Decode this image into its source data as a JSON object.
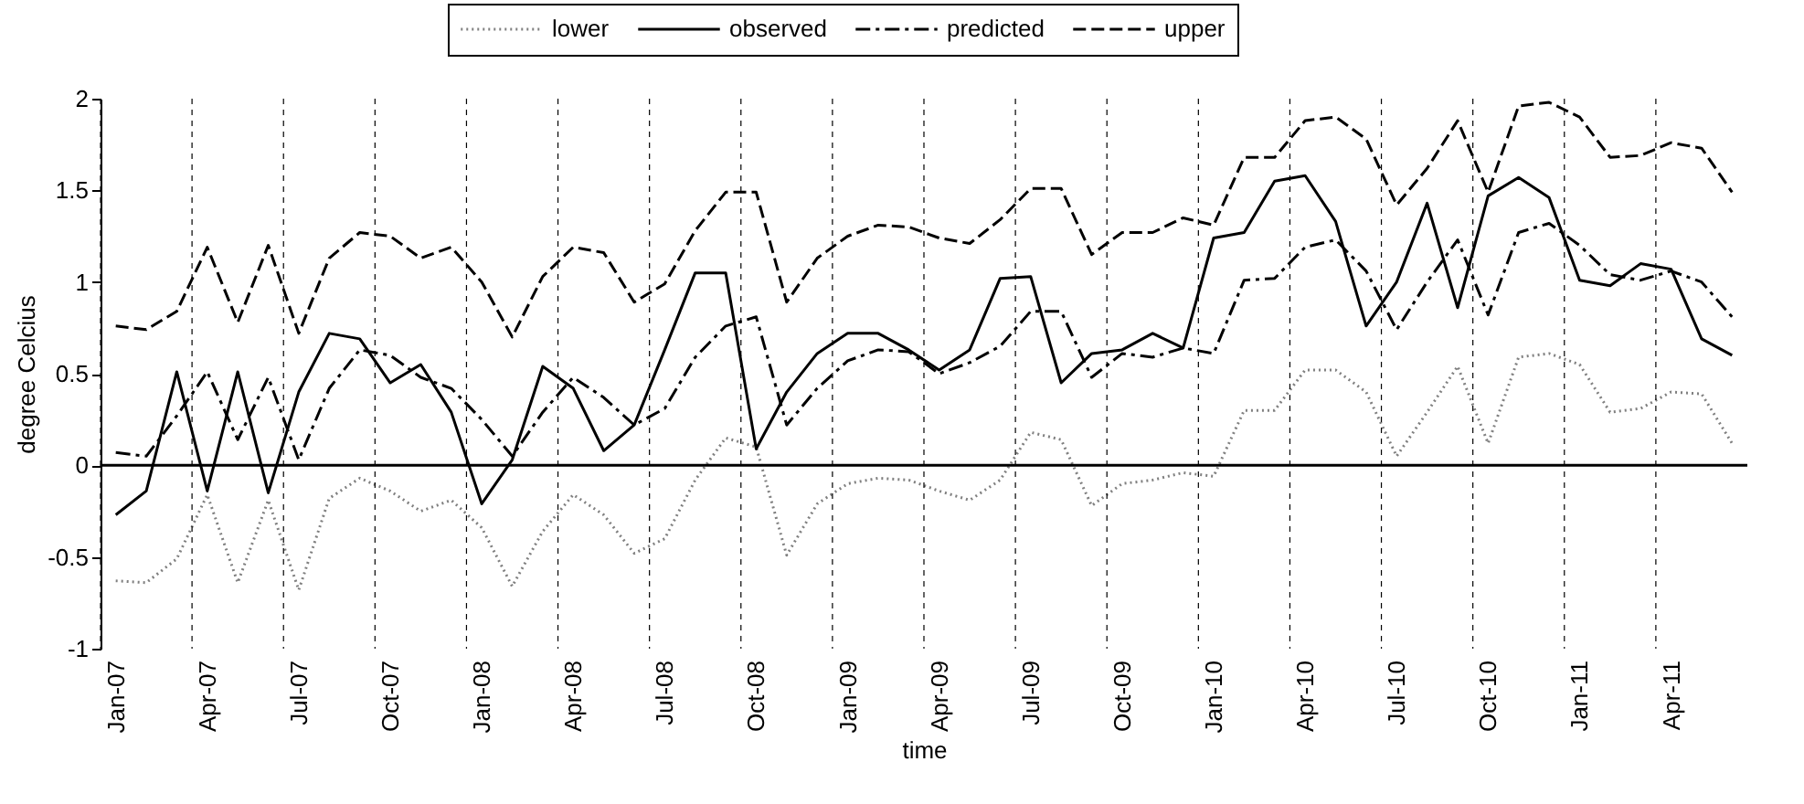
{
  "chart_data": {
    "type": "line",
    "xlabel": "time",
    "ylabel": "degree Celcius",
    "categories": [
      "Jan-07",
      null,
      null,
      "Apr-07",
      null,
      null,
      "Jul-07",
      null,
      null,
      "Oct-07",
      null,
      null,
      "Jan-08",
      null,
      null,
      "Apr-08",
      null,
      null,
      "Jul-08",
      null,
      null,
      "Oct-08",
      null,
      null,
      "Jan-09",
      null,
      null,
      "Apr-09",
      null,
      null,
      "Jul-09",
      null,
      null,
      "Oct-09",
      null,
      null,
      "Jan-10",
      null,
      null,
      "Apr-10",
      null,
      null,
      "Jul-10",
      null,
      null,
      "Oct-10",
      null,
      null,
      "Jan-11",
      null,
      null,
      "Apr-11",
      null,
      null
    ],
    "series": [
      {
        "name": "lower",
        "color": "#808080",
        "line_style": "dotted",
        "values": [
          -0.63,
          -0.64,
          -0.51,
          -0.16,
          -0.64,
          -0.19,
          -0.68,
          -0.18,
          -0.07,
          -0.14,
          -0.25,
          -0.19,
          -0.34,
          -0.66,
          -0.36,
          -0.16,
          -0.27,
          -0.48,
          -0.4,
          -0.08,
          0.15,
          0.1,
          -0.49,
          -0.21,
          -0.1,
          -0.07,
          -0.08,
          -0.14,
          -0.19,
          -0.08,
          0.18,
          0.14,
          -0.22,
          -0.1,
          -0.08,
          -0.04,
          -0.06,
          0.3,
          0.3,
          0.52,
          0.52,
          0.4,
          0.05,
          0.29,
          0.54,
          0.12,
          0.59,
          0.61,
          0.55,
          0.29,
          0.31,
          0.4,
          0.39,
          0.12
        ]
      },
      {
        "name": "observed",
        "color": "#000000",
        "line_style": "solid",
        "values": [
          -0.27,
          -0.14,
          0.51,
          -0.14,
          0.51,
          -0.15,
          0.4,
          0.72,
          0.69,
          0.45,
          0.55,
          0.29,
          -0.21,
          0.03,
          0.54,
          0.42,
          0.08,
          0.22,
          0.63,
          1.05,
          1.05,
          0.09,
          0.4,
          0.61,
          0.72,
          0.72,
          0.63,
          0.52,
          0.63,
          1.02,
          1.03,
          0.45,
          0.61,
          0.63,
          0.72,
          0.64,
          1.24,
          1.27,
          1.55,
          1.58,
          1.33,
          0.76,
          1.0,
          1.43,
          0.86,
          1.47,
          1.57,
          1.46,
          1.01,
          0.98,
          1.1,
          1.07,
          0.69,
          0.6
        ]
      },
      {
        "name": "predicted",
        "color": "#000000",
        "line_style": "dashdot",
        "values": [
          0.07,
          0.05,
          0.27,
          0.51,
          0.14,
          0.48,
          0.03,
          0.42,
          0.63,
          0.6,
          0.48,
          0.42,
          0.25,
          0.05,
          0.29,
          0.48,
          0.37,
          0.22,
          0.31,
          0.59,
          0.76,
          0.81,
          0.22,
          0.42,
          0.57,
          0.63,
          0.62,
          0.5,
          0.56,
          0.65,
          0.84,
          0.84,
          0.48,
          0.61,
          0.59,
          0.64,
          0.61,
          1.01,
          1.02,
          1.19,
          1.23,
          1.06,
          0.74,
          1.0,
          1.23,
          0.82,
          1.27,
          1.32,
          1.2,
          1.04,
          1.01,
          1.06,
          1.0,
          0.81
        ]
      },
      {
        "name": "upper",
        "color": "#000000",
        "line_style": "dashed",
        "values": [
          0.76,
          0.74,
          0.84,
          1.19,
          0.78,
          1.2,
          0.72,
          1.13,
          1.27,
          1.25,
          1.13,
          1.19,
          1.0,
          0.7,
          1.03,
          1.19,
          1.16,
          0.89,
          0.99,
          1.28,
          1.49,
          1.49,
          0.89,
          1.13,
          1.25,
          1.31,
          1.3,
          1.24,
          1.21,
          1.34,
          1.51,
          1.51,
          1.15,
          1.27,
          1.27,
          1.35,
          1.31,
          1.68,
          1.68,
          1.88,
          1.9,
          1.78,
          1.42,
          1.62,
          1.88,
          1.49,
          1.96,
          1.98,
          1.9,
          1.68,
          1.69,
          1.76,
          1.73,
          1.49
        ]
      }
    ],
    "ylim": [
      -1,
      2
    ],
    "yticks": [
      -1,
      -0.5,
      0,
      0.5,
      1,
      1.5,
      2
    ],
    "ref_lines": [
      {
        "axis": "y",
        "value": 0
      }
    ],
    "grid": "x",
    "legend": "top"
  }
}
